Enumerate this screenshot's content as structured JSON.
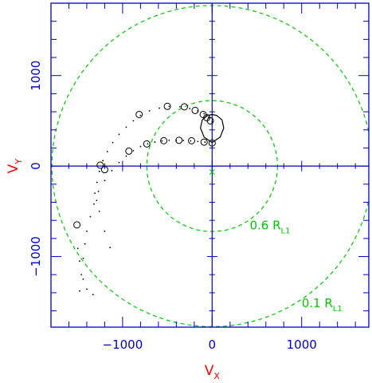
{
  "chart_data": {
    "type": "scatter",
    "title": "",
    "xlabel_main": "V",
    "xlabel_sub": "X",
    "ylabel_main": "V",
    "ylabel_sub": "Y",
    "xlim": [
      -1800,
      1750
    ],
    "ylim": [
      -1780,
      1800
    ],
    "x_ticks": [
      -1000,
      0,
      1000
    ],
    "x_tick_labels": [
      "−1000",
      "0",
      "1000"
    ],
    "y_ticks": [
      -1000,
      0,
      1000
    ],
    "y_tick_labels": [
      "−1000",
      "0",
      "1000"
    ],
    "minor_tick_step": 200,
    "grid": false,
    "center": [
      0,
      0
    ],
    "center_marker": [
      0,
      -65
    ],
    "circles": [
      {
        "label_main": "0.6 R",
        "label_sub": "L1",
        "radius": 730,
        "label_at": [
          420,
          -700
        ],
        "color": "#00c800"
      },
      {
        "label_main": "0.1 R",
        "label_sub": "L1",
        "radius": 1790,
        "label_at": [
          1000,
          -1560
        ],
        "color": "#00c800"
      }
    ],
    "upper_stream": {
      "x": [
        -1310,
        -1285,
        -1260,
        -1220,
        -1170,
        -1110,
        -1040,
        -960,
        -880,
        -800,
        -700,
        -590,
        -480,
        -360,
        -250,
        -160,
        -90,
        -40,
        0
      ],
      "y": [
        -300,
        -180,
        -60,
        60,
        160,
        260,
        350,
        430,
        500,
        560,
        610,
        640,
        660,
        655,
        635,
        610,
        580,
        540,
        490
      ]
    },
    "upper_stream_circles": {
      "x": [
        -1510,
        -1250,
        -815,
        -500,
        -310,
        -190,
        -100,
        -60,
        -20
      ],
      "y": [
        -650,
        10,
        570,
        660,
        655,
        615,
        570,
        535,
        500
      ]
    },
    "lower_stream": {
      "x": [
        -1480,
        -1460,
        -1440,
        -1420,
        -1400,
        -1360,
        -1320,
        -1270,
        -1200,
        -1120,
        -1040,
        -960,
        -880,
        -800,
        -720,
        -640,
        -560,
        -480,
        -400,
        -320,
        -240,
        -160,
        -80,
        0
      ],
      "y": [
        -1380,
        -1200,
        -1020,
        -860,
        -720,
        -560,
        -420,
        -280,
        -160,
        -50,
        40,
        110,
        170,
        215,
        245,
        265,
        278,
        284,
        285,
        283,
        278,
        272,
        265,
        260
      ]
    },
    "lower_stream_circles": {
      "x": [
        -1200,
        -930,
        -730,
        -540,
        -370,
        -230,
        -90,
        0
      ],
      "y": [
        -40,
        165,
        245,
        280,
        285,
        280,
        265,
        255
      ]
    },
    "loop": {
      "x": [
        0,
        -90,
        -130,
        -110,
        -50,
        0,
        50,
        110,
        130,
        90,
        0
      ],
      "y": [
        260,
        320,
        420,
        510,
        560,
        570,
        560,
        510,
        420,
        320,
        260
      ]
    },
    "outer_dots": {
      "x": [
        -1500,
        -1480,
        -1440,
        -1400,
        -1330,
        -1290,
        -1260,
        -1200,
        -1140
      ],
      "y": [
        -910,
        -1050,
        -1250,
        -1360,
        -1420,
        -380,
        -500,
        -720,
        -900
      ]
    },
    "colors": {
      "axis": "#0000c8",
      "axis_text": "#0000c8",
      "label": "#ff0000",
      "circle": "#00c800",
      "data": "#000000"
    }
  }
}
